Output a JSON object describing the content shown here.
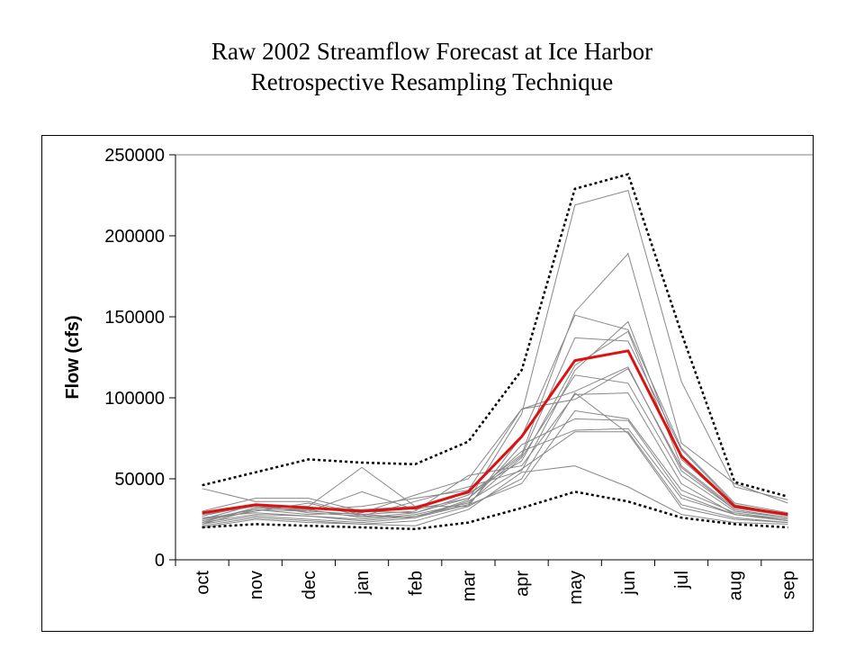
{
  "title_line1": "Raw 2002 Streamflow Forecast at Ice Harbor",
  "title_line2": "Retrospective Resampling Technique",
  "chart_data": {
    "type": "line",
    "title": "Raw 2002 Streamflow Forecast at Ice Harbor",
    "subtitle": "Retrospective Resampling Technique",
    "xlabel": "",
    "ylabel": "Flow (cfs)",
    "categories": [
      "oct",
      "nov",
      "dec",
      "jan",
      "feb",
      "mar",
      "apr",
      "may",
      "jun",
      "jul",
      "aug",
      "sep"
    ],
    "ylim": [
      0,
      250000
    ],
    "yticks": [
      0,
      50000,
      100000,
      150000,
      200000,
      250000
    ],
    "grid": false,
    "legend": "none",
    "colors": {
      "ensemble": "#888888",
      "mean": "#dd1111",
      "bounds": "#000000"
    },
    "series": [
      {
        "role": "upper-bound",
        "style": "dotted",
        "values": [
          46000,
          54000,
          62000,
          60000,
          59000,
          73000,
          117000,
          229000,
          238000,
          140000,
          48000,
          39000
        ]
      },
      {
        "role": "lower-bound",
        "style": "dotted",
        "values": [
          20000,
          22000,
          21000,
          20000,
          19000,
          23000,
          32000,
          42000,
          36000,
          26000,
          22000,
          20000
        ]
      },
      {
        "role": "ensemble-mean",
        "style": "solid-bold",
        "values": [
          29000,
          34000,
          32000,
          30000,
          32000,
          42000,
          76000,
          123000,
          129000,
          64000,
          33000,
          28000
        ]
      },
      {
        "role": "trace",
        "values": [
          44000,
          36000,
          36000,
          28000,
          26000,
          37000,
          90000,
          219000,
          228000,
          110000,
          45000,
          37000
        ]
      },
      {
        "role": "trace",
        "values": [
          30000,
          38000,
          38000,
          30000,
          29000,
          40000,
          65000,
          153000,
          189000,
          72000,
          47000,
          35000
        ]
      },
      {
        "role": "trace",
        "values": [
          27000,
          34000,
          33000,
          57000,
          33000,
          33000,
          76000,
          151000,
          142000,
          69000,
          35000,
          29000
        ]
      },
      {
        "role": "trace",
        "values": [
          25000,
          31000,
          30000,
          42000,
          31000,
          38000,
          64000,
          137000,
          135000,
          68000,
          34000,
          28000
        ]
      },
      {
        "role": "trace",
        "values": [
          24000,
          30000,
          35000,
          27000,
          36000,
          45000,
          55000,
          117000,
          147000,
          62000,
          33000,
          27000
        ]
      },
      {
        "role": "trace",
        "values": [
          23000,
          32000,
          31000,
          33000,
          38000,
          43000,
          93000,
          99000,
          118000,
          57000,
          31000,
          26000
        ]
      },
      {
        "role": "trace",
        "values": [
          22000,
          31000,
          28000,
          29000,
          40000,
          50000,
          93000,
          104000,
          119000,
          55000,
          31000,
          26000
        ]
      },
      {
        "role": "trace",
        "values": [
          28000,
          33000,
          30000,
          28000,
          30000,
          52000,
          58000,
          102000,
          103000,
          47000,
          28000,
          25000
        ]
      },
      {
        "role": "trace",
        "values": [
          26000,
          29000,
          27000,
          25000,
          28000,
          35000,
          63000,
          114000,
          109000,
          52000,
          30000,
          26000
        ]
      },
      {
        "role": "trace",
        "values": [
          25000,
          34000,
          29000,
          27000,
          26000,
          34000,
          47000,
          92000,
          87000,
          43000,
          29000,
          25000
        ]
      },
      {
        "role": "trace",
        "values": [
          23000,
          28000,
          27000,
          24000,
          27000,
          34000,
          71000,
          87000,
          86000,
          40000,
          28000,
          24000
        ]
      },
      {
        "role": "trace",
        "values": [
          24000,
          32000,
          31000,
          26000,
          29000,
          38000,
          67000,
          80000,
          81000,
          38000,
          28000,
          24000
        ]
      },
      {
        "role": "trace",
        "values": [
          22000,
          27000,
          25000,
          23000,
          26000,
          36000,
          56000,
          79000,
          79000,
          34000,
          26000,
          23000
        ]
      },
      {
        "role": "trace",
        "values": [
          21000,
          26000,
          24000,
          22000,
          24000,
          33000,
          50000,
          103000,
          78000,
          32000,
          25000,
          23000
        ]
      },
      {
        "role": "trace",
        "values": [
          20000,
          25000,
          23000,
          22000,
          21000,
          31000,
          54000,
          58000,
          45000,
          28000,
          23000,
          22000
        ]
      },
      {
        "role": "trace",
        "values": [
          28000,
          33000,
          32000,
          31000,
          33000,
          41000,
          61000,
          120000,
          141000,
          58000,
          32000,
          27000
        ]
      }
    ]
  }
}
